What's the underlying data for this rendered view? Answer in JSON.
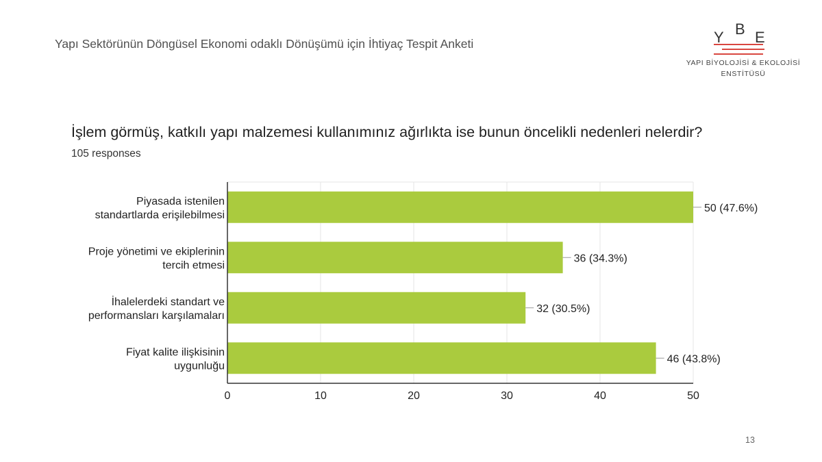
{
  "header": {
    "title": "Yapı Sektörünün Döngüsel Ekonomi odaklı Dönüşümü için İhtiyaç Tespit Anketi"
  },
  "logo": {
    "letters": [
      "Y",
      "B",
      "E"
    ],
    "line1": "YAPI BİYOLOJİSİ & EKOLOJİSİ",
    "line2": "ENSTİTÜSÜ",
    "accent_color": "#d9463f"
  },
  "question": {
    "text": "İşlem görmüş, katkılı yapı malzemesi kullanımınız ağırlıkta ise bunun öncelikli nedenleri nelerdir?",
    "responses": "105 responses"
  },
  "chart_data": {
    "type": "bar",
    "orientation": "horizontal",
    "categories": [
      [
        "Piyasada istenilen",
        "standartlarda erişilebilmesi"
      ],
      [
        "Proje yönetimi ve ekiplerinin",
        "tercih etmesi"
      ],
      [
        "İhalelerdeki standart ve",
        "performansları karşılamaları"
      ],
      [
        "Fiyat kalite ilişkisinin",
        "uygunluğu"
      ]
    ],
    "values": [
      50,
      36,
      32,
      46
    ],
    "data_labels": [
      "50 (47.6%)",
      "36 (34.3%)",
      "32 (30.5%)",
      "46 (43.8%)"
    ],
    "xlim": [
      0,
      50
    ],
    "xticks": [
      0,
      10,
      20,
      30,
      40,
      50
    ],
    "grid": true,
    "bar_color": "#aacb3e"
  },
  "page_number": "13"
}
